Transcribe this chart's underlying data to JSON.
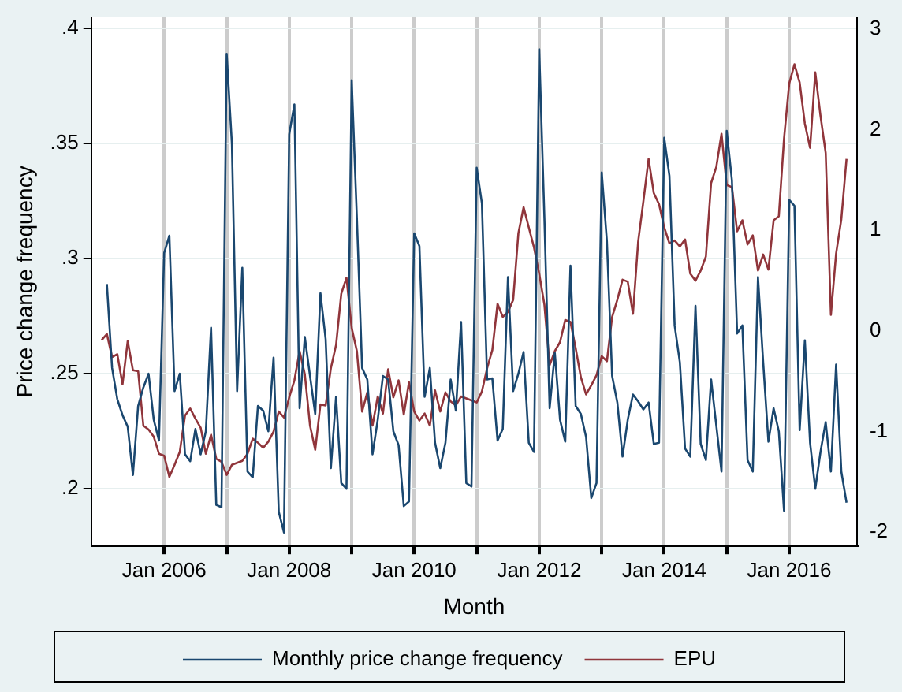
{
  "chart_data": {
    "type": "line",
    "ylabel": "Price change frequency",
    "xlabel": "Month",
    "x": [
      "2005-01",
      "2005-02",
      "2005-03",
      "2005-04",
      "2005-05",
      "2005-06",
      "2005-07",
      "2005-08",
      "2005-09",
      "2005-10",
      "2005-11",
      "2005-12",
      "2006-01",
      "2006-02",
      "2006-03",
      "2006-04",
      "2006-05",
      "2006-06",
      "2006-07",
      "2006-08",
      "2006-09",
      "2006-10",
      "2006-11",
      "2006-12",
      "2007-01",
      "2007-02",
      "2007-03",
      "2007-04",
      "2007-05",
      "2007-06",
      "2007-07",
      "2007-08",
      "2007-09",
      "2007-10",
      "2007-11",
      "2007-12",
      "2008-01",
      "2008-02",
      "2008-03",
      "2008-04",
      "2008-05",
      "2008-06",
      "2008-07",
      "2008-08",
      "2008-09",
      "2008-10",
      "2008-11",
      "2008-12",
      "2009-01",
      "2009-02",
      "2009-03",
      "2009-04",
      "2009-05",
      "2009-06",
      "2009-07",
      "2009-08",
      "2009-09",
      "2009-10",
      "2009-11",
      "2009-12",
      "2010-01",
      "2010-02",
      "2010-03",
      "2010-04",
      "2010-05",
      "2010-06",
      "2010-07",
      "2010-08",
      "2010-09",
      "2010-10",
      "2010-11",
      "2010-12",
      "2011-01",
      "2011-02",
      "2011-03",
      "2011-04",
      "2011-05",
      "2011-06",
      "2011-07",
      "2011-08",
      "2011-09",
      "2011-10",
      "2011-11",
      "2011-12",
      "2012-01",
      "2012-02",
      "2012-03",
      "2012-04",
      "2012-05",
      "2012-06",
      "2012-07",
      "2012-08",
      "2012-09",
      "2012-10",
      "2012-11",
      "2012-12",
      "2013-01",
      "2013-02",
      "2013-03",
      "2013-04",
      "2013-05",
      "2013-06",
      "2013-07",
      "2013-08",
      "2013-09",
      "2013-10",
      "2013-11",
      "2013-12",
      "2014-01",
      "2014-02",
      "2014-03",
      "2014-04",
      "2014-05",
      "2014-06",
      "2014-07",
      "2014-08",
      "2014-09",
      "2014-10",
      "2014-11",
      "2014-12",
      "2015-01",
      "2015-02",
      "2015-03",
      "2015-04",
      "2015-05",
      "2015-06",
      "2015-07",
      "2015-08",
      "2015-09",
      "2015-10",
      "2015-11",
      "2015-12",
      "2016-01",
      "2016-02",
      "2016-03",
      "2016-04",
      "2016-05",
      "2016-06",
      "2016-07",
      "2016-08",
      "2016-09",
      "2016-10",
      "2016-11",
      "2016-12"
    ],
    "series": [
      {
        "name": "Monthly price change frequency",
        "color": "#1a476f",
        "values": [
          null,
          0.289,
          0.2525,
          0.239,
          0.232,
          0.227,
          0.206,
          0.236,
          0.244,
          0.25,
          0.23,
          0.221,
          0.3025,
          0.31,
          0.2425,
          0.25,
          0.215,
          0.212,
          0.226,
          0.215,
          0.225,
          0.27,
          0.193,
          0.192,
          0.389,
          0.35,
          0.2425,
          0.296,
          0.2075,
          0.205,
          0.236,
          0.234,
          0.225,
          0.257,
          0.19,
          0.181,
          0.354,
          0.367,
          0.235,
          0.266,
          0.249,
          0.2325,
          0.285,
          0.265,
          0.209,
          0.24,
          0.2025,
          0.2,
          0.3775,
          0.3175,
          0.2525,
          0.2475,
          0.215,
          0.23,
          0.249,
          0.2475,
          0.225,
          0.219,
          0.1925,
          0.1945,
          0.311,
          0.3055,
          0.24,
          0.2525,
          0.22,
          0.209,
          0.22,
          0.2475,
          0.234,
          0.2725,
          0.2025,
          0.201,
          0.3395,
          0.324,
          0.2475,
          0.248,
          0.221,
          0.226,
          0.292,
          0.2425,
          0.25,
          0.2595,
          0.22,
          0.216,
          0.391,
          0.3175,
          0.235,
          0.259,
          0.23,
          0.2205,
          0.297,
          0.236,
          0.2325,
          0.2225,
          0.196,
          0.2025,
          0.3375,
          0.3075,
          0.249,
          0.2375,
          0.214,
          0.23,
          0.241,
          0.238,
          0.2345,
          0.2375,
          0.2195,
          0.22,
          0.3525,
          0.336,
          0.271,
          0.255,
          0.2175,
          0.214,
          0.2795,
          0.2195,
          0.2125,
          0.2475,
          0.2275,
          0.2075,
          0.3555,
          0.334,
          0.2675,
          0.271,
          0.2125,
          0.2075,
          0.292,
          0.255,
          0.2205,
          0.235,
          0.225,
          0.1905,
          0.3255,
          0.323,
          0.2255,
          0.2645,
          0.22,
          0.2,
          0.216,
          0.229,
          0.2075,
          0.254,
          0.2075,
          0.194
        ]
      },
      {
        "name": "EPU",
        "color": "#90353b",
        "axis": "y2",
        "values": [
          -0.09,
          -0.03,
          -0.26,
          -0.23,
          -0.53,
          -0.1,
          -0.39,
          -0.4,
          -0.94,
          -0.98,
          -1.05,
          -1.22,
          -1.24,
          -1.45,
          -1.33,
          -1.2,
          -0.84,
          -0.77,
          -0.87,
          -0.96,
          -1.22,
          -1.03,
          -1.27,
          -1.3,
          -1.43,
          -1.33,
          -1.31,
          -1.29,
          -1.22,
          -1.07,
          -1.11,
          -1.16,
          -1.1,
          -1.0,
          -0.8,
          -0.86,
          -0.66,
          -0.49,
          -0.2,
          -0.43,
          -0.94,
          -1.18,
          -0.73,
          -0.74,
          -0.37,
          -0.14,
          0.37,
          0.53,
          0.03,
          -0.2,
          -0.8,
          -0.61,
          -0.94,
          -0.65,
          -0.82,
          -0.38,
          -0.66,
          -0.49,
          -0.83,
          -0.51,
          -0.8,
          -0.89,
          -0.82,
          -0.94,
          -0.59,
          -0.8,
          -0.61,
          -0.7,
          -0.74,
          -0.65,
          -0.67,
          -0.69,
          -0.71,
          -0.6,
          -0.37,
          -0.19,
          0.27,
          0.14,
          0.19,
          0.31,
          0.97,
          1.23,
          1.03,
          0.83,
          0.57,
          0.26,
          -0.34,
          -0.2,
          -0.11,
          0.11,
          0.09,
          -0.17,
          -0.46,
          -0.63,
          -0.54,
          -0.44,
          -0.25,
          -0.3,
          0.14,
          0.31,
          0.51,
          0.49,
          0.17,
          0.89,
          1.29,
          1.71,
          1.37,
          1.26,
          1.03,
          0.87,
          0.9,
          0.84,
          0.91,
          0.57,
          0.5,
          0.6,
          0.74,
          1.47,
          1.63,
          1.96,
          1.45,
          1.43,
          0.99,
          1.1,
          0.86,
          0.95,
          0.6,
          0.76,
          0.61,
          1.1,
          1.14,
          1.91,
          2.46,
          2.65,
          2.47,
          2.06,
          1.82,
          2.57,
          2.14,
          1.77,
          0.16,
          0.77,
          1.11,
          1.71
        ]
      }
    ],
    "xlim": [
      "2004-11",
      "2017-02"
    ],
    "xticks": [
      {
        "value": "2006-01",
        "label": "Jan 2006"
      },
      {
        "value": "2007-01",
        "label": null
      },
      {
        "value": "2008-01",
        "label": "Jan 2008"
      },
      {
        "value": "2009-01",
        "label": null
      },
      {
        "value": "2010-01",
        "label": "Jan 2010"
      },
      {
        "value": "2011-01",
        "label": null
      },
      {
        "value": "2012-01",
        "label": "Jan 2012"
      },
      {
        "value": "2013-01",
        "label": null
      },
      {
        "value": "2014-01",
        "label": "Jan 2014"
      },
      {
        "value": "2015-01",
        "label": null
      },
      {
        "value": "2016-01",
        "label": "Jan 2016"
      }
    ],
    "ylim": [
      0.175,
      0.405
    ],
    "yticks": [
      {
        "value": 0.2,
        "label": ".2"
      },
      {
        "value": 0.25,
        "label": ".25"
      },
      {
        "value": 0.3,
        "label": ".3"
      },
      {
        "value": 0.35,
        "label": ".35"
      },
      {
        "value": 0.4,
        "label": ".4"
      }
    ],
    "y2lim": [
      -2.14,
      3.12
    ],
    "y2ticks": [
      -2,
      -1,
      0,
      1,
      2,
      3
    ],
    "grid": true,
    "legend": "bottom",
    "marker": "none",
    "line_style": "solid"
  }
}
